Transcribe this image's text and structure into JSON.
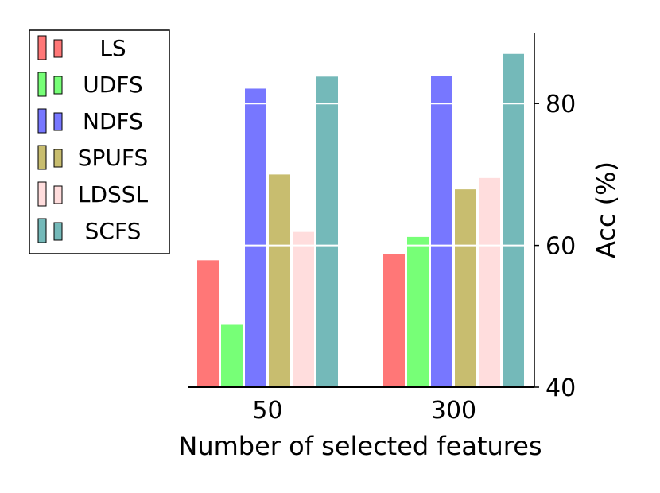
{
  "chart_data": {
    "type": "bar",
    "categories": [
      "50",
      "300"
    ],
    "series": [
      {
        "name": "LS",
        "color": "#ff7777",
        "values": [
          57.9,
          58.8
        ]
      },
      {
        "name": "UDFS",
        "color": "#77ff77",
        "values": [
          48.8,
          61.2
        ]
      },
      {
        "name": "NDFS",
        "color": "#7777ff",
        "values": [
          82.1,
          83.9
        ]
      },
      {
        "name": "SPUFS",
        "color": "#c8bd6f",
        "values": [
          70.0,
          67.9
        ]
      },
      {
        "name": "LDSSL",
        "color": "#ffdddd",
        "values": [
          61.9,
          69.5
        ]
      },
      {
        "name": "SCFS",
        "color": "#74b9b9",
        "values": [
          83.8,
          87.0
        ]
      }
    ],
    "xlabel": "Number of selected features",
    "ylabel": "Acc (%)",
    "ylim": [
      40,
      90
    ],
    "yticks": [
      40,
      60,
      80
    ],
    "ytick_labels": [
      "40",
      "60",
      "80"
    ],
    "y_axis_side": "right",
    "grid": "horizontal-white",
    "legend_position": "left"
  }
}
